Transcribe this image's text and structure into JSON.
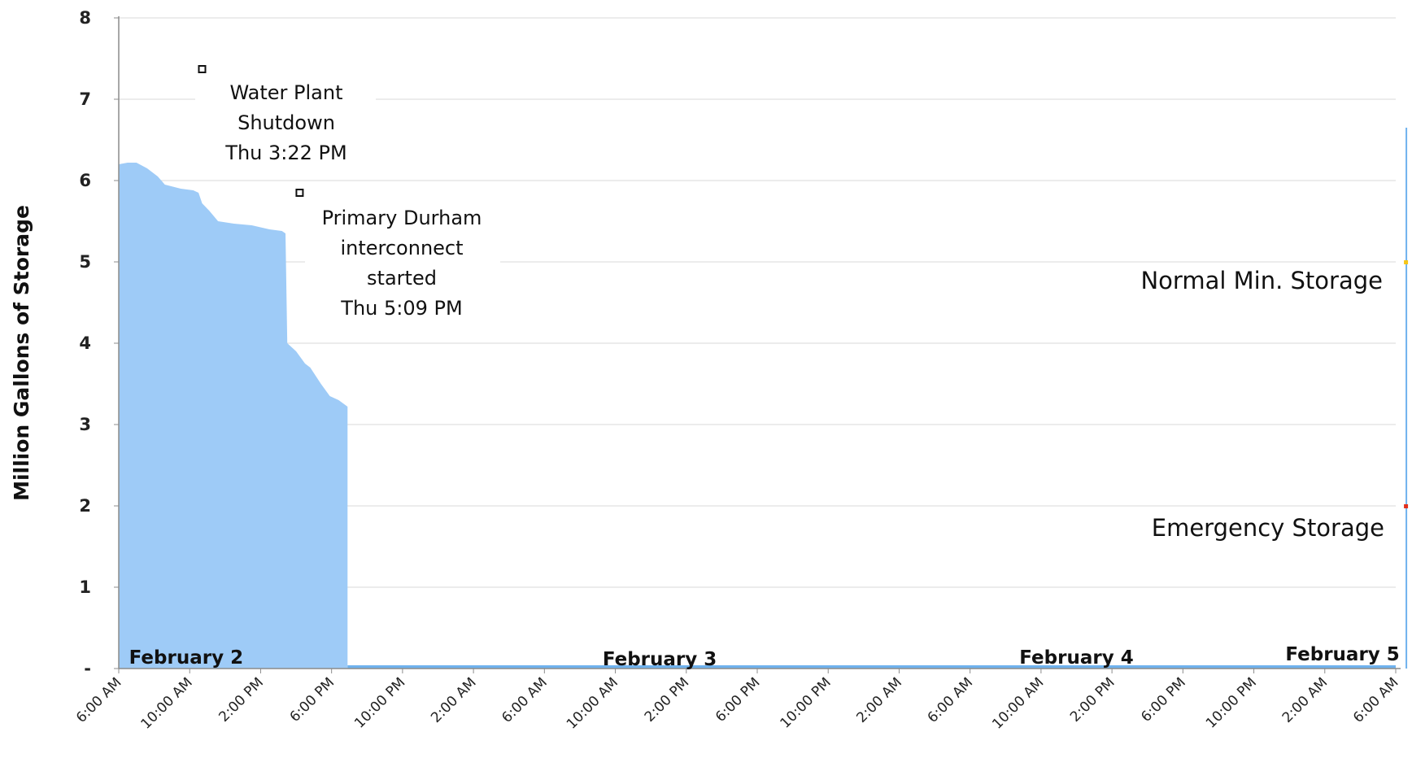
{
  "chart_data": {
    "type": "area",
    "title": "",
    "xlabel": "",
    "ylabel": "Million Gallons of Storage",
    "ylim": [
      0,
      8
    ],
    "y_ticks": [
      "-",
      "1",
      "2",
      "3",
      "4",
      "5",
      "6",
      "7",
      "8"
    ],
    "x_tick_labels": [
      "6:00 AM",
      "10:00 AM",
      "2:00 PM",
      "6:00 PM",
      "10:00 PM",
      "2:00 AM",
      "6:00 AM",
      "10:00 AM",
      "2:00 PM",
      "6:00 PM",
      "10:00 PM",
      "2:00 AM",
      "6:00 AM",
      "10:00 AM",
      "2:00 PM",
      "6:00 PM",
      "10:00 PM",
      "2:00 AM",
      "6:00 AM"
    ],
    "x_range_hours": [
      0,
      72
    ],
    "day_labels": [
      {
        "text": "February 2",
        "hour": 3.8
      },
      {
        "text": "February 3",
        "hour": 30.5
      },
      {
        "text": "February 4",
        "hour": 54
      },
      {
        "text": "February 5",
        "hour": 69
      }
    ],
    "series": [
      {
        "color": "#9ecbf7",
        "points": [
          [
            0,
            6.2
          ],
          [
            0.5,
            6.22
          ],
          [
            1.0,
            6.22
          ],
          [
            1.6,
            6.15
          ],
          [
            2.2,
            6.05
          ],
          [
            2.6,
            5.95
          ],
          [
            3.5,
            5.9
          ],
          [
            4.2,
            5.88
          ],
          [
            4.5,
            5.85
          ],
          [
            4.7,
            5.72
          ],
          [
            5.1,
            5.63
          ],
          [
            5.6,
            5.5
          ],
          [
            6.5,
            5.47
          ],
          [
            7.5,
            5.45
          ],
          [
            8.5,
            5.4
          ],
          [
            9.2,
            5.38
          ],
          [
            9.4,
            5.35
          ],
          [
            9.5,
            4.0
          ],
          [
            10.0,
            3.9
          ],
          [
            10.5,
            3.75
          ],
          [
            10.8,
            3.7
          ],
          [
            11.4,
            3.5
          ],
          [
            11.9,
            3.35
          ],
          [
            12.4,
            3.3
          ],
          [
            12.9,
            3.22
          ],
          [
            12.9,
            0
          ]
        ],
        "baseline": {
          "value": 0.04,
          "from_hour": 12.9,
          "to_hour": 72
        },
        "end_spike": {
          "hour": 72.6,
          "value": 6.65
        }
      }
    ],
    "reference_lines": [
      {
        "label": "Normal Min. Storage",
        "value": 5.0,
        "color": "#f5c518"
      },
      {
        "label": "Emergency Storage",
        "value": 2.0,
        "color": "#e0301e"
      }
    ],
    "annotations": [
      {
        "lines": [
          "Water Plant",
          "Shutdown",
          "Thu 3:22 PM"
        ],
        "hour": 4.7,
        "value": 7.37
      },
      {
        "lines": [
          "Primary Durham",
          "interconnect",
          "started",
          "Thu 5:09 PM"
        ],
        "hour": 10.2,
        "value": 5.85
      }
    ],
    "grid": true,
    "colors": {
      "area": "#9ecbf7",
      "area_line": "#6fb2ee",
      "axis": "#8c8c8c",
      "grid": "#d9d9d9"
    }
  }
}
